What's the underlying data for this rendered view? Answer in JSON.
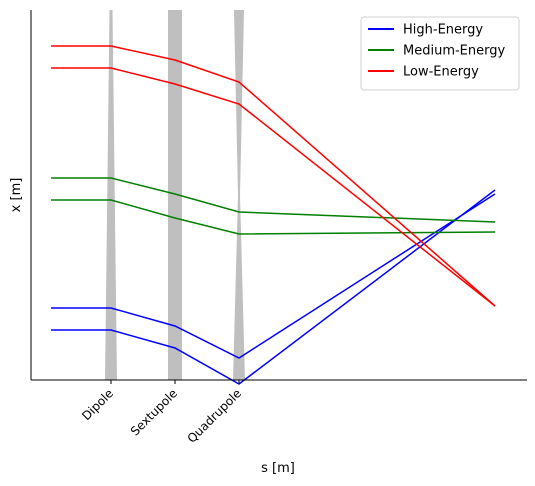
{
  "chart_data": {
    "type": "line",
    "xlabel": "s [m]",
    "ylabel": "x [m]",
    "xlim": [
      -0.2,
      6.0
    ],
    "ylim": [
      -0.85,
      1.0
    ],
    "grid": false,
    "legend_position": "top-right",
    "elements": [
      {
        "name": "Dipole",
        "s": 0.8,
        "shape": "needle",
        "color": "#bfbfbf"
      },
      {
        "name": "Sextupole",
        "s": 1.6,
        "shape": "bar",
        "color": "#bfbfbf"
      },
      {
        "name": "Quadrupole",
        "s": 2.4,
        "shape": "needle",
        "color": "#bfbfbf"
      }
    ],
    "series": [
      {
        "name": "High-Energy",
        "color": "#0000ff",
        "lines": [
          {
            "x": [
              0.05,
              0.8,
              1.6,
              2.4,
              5.6
            ],
            "y": [
              -0.49,
              -0.49,
              -0.58,
              -0.74,
              0.08
            ]
          },
          {
            "x": [
              0.05,
              0.8,
              1.6,
              2.4,
              5.6
            ],
            "y": [
              -0.6,
              -0.6,
              -0.69,
              -0.87,
              0.1
            ]
          }
        ]
      },
      {
        "name": "Medium-Energy",
        "color": "#008000",
        "lines": [
          {
            "x": [
              0.05,
              0.8,
              1.6,
              2.4,
              5.6
            ],
            "y": [
              0.16,
              0.16,
              0.08,
              -0.01,
              -0.06
            ]
          },
          {
            "x": [
              0.05,
              0.8,
              1.6,
              2.4,
              5.6
            ],
            "y": [
              0.05,
              0.05,
              -0.04,
              -0.12,
              -0.11
            ]
          }
        ]
      },
      {
        "name": "Low-Energy",
        "color": "#ff0000",
        "lines": [
          {
            "x": [
              0.05,
              0.8,
              1.6,
              2.4,
              5.6
            ],
            "y": [
              0.82,
              0.82,
              0.75,
              0.64,
              -0.48
            ]
          },
          {
            "x": [
              0.05,
              0.8,
              1.6,
              2.4,
              5.6
            ],
            "y": [
              0.71,
              0.71,
              0.63,
              0.53,
              -0.48
            ]
          }
        ]
      }
    ]
  }
}
